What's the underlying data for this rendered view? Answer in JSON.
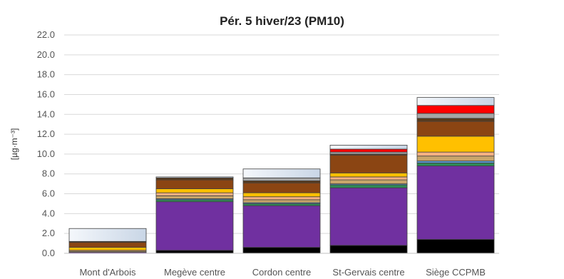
{
  "chart_data": {
    "type": "bar",
    "stacked": true,
    "title": "Pér. 5 hiver/23 (PM10)",
    "ylabel": "[µg·m⁻³]",
    "xlabel": "",
    "ylim": [
      0,
      22
    ],
    "ytick_step": 2,
    "ytick_labels": [
      "0.0",
      "2.0",
      "4.0",
      "6.0",
      "8.0",
      "10.0",
      "12.0",
      "14.0",
      "16.0",
      "18.0",
      "20.0",
      "22.0"
    ],
    "grid": true,
    "legend": "none",
    "categories": [
      "Mont d'Arbois",
      "Megève centre",
      "Cordon centre",
      "St-Gervais centre",
      "Siège CCPMB"
    ],
    "series": [
      {
        "color": "#000000",
        "values": [
          0.0,
          0.3,
          0.6,
          0.8,
          1.4
        ]
      },
      {
        "color": "#7030A0",
        "values": [
          0.1,
          4.9,
          4.2,
          5.8,
          7.4
        ]
      },
      {
        "color": "#2E8B57",
        "values": [
          0.0,
          0.2,
          0.2,
          0.3,
          0.3
        ]
      },
      {
        "color": "#5B9BD5",
        "values": [
          0.0,
          0.1,
          0.1,
          0.1,
          0.2
        ]
      },
      {
        "color": "#C9A66B",
        "values": [
          0.1,
          0.3,
          0.3,
          0.4,
          0.5
        ]
      },
      {
        "color": "#F4B183",
        "values": [
          0.1,
          0.3,
          0.3,
          0.3,
          0.4
        ]
      },
      {
        "color": "#FFC000",
        "values": [
          0.3,
          0.4,
          0.4,
          0.4,
          1.6
        ]
      },
      {
        "color": "#8B4513",
        "values": [
          0.5,
          0.9,
          1.0,
          1.8,
          1.5
        ]
      },
      {
        "color": "#5A3A1A",
        "values": [
          0.1,
          0.2,
          0.2,
          0.1,
          0.3
        ]
      },
      {
        "color": "#A6A6A6",
        "values": [
          0.0,
          0.0,
          0.3,
          0.2,
          0.5
        ]
      },
      {
        "color": "#FF0000",
        "values": [
          0.0,
          0.0,
          0.0,
          0.3,
          0.8
        ]
      },
      {
        "color": "#D9E4F2",
        "values": [
          1.3,
          0.1,
          0.9,
          0.4,
          0.8
        ]
      }
    ]
  }
}
